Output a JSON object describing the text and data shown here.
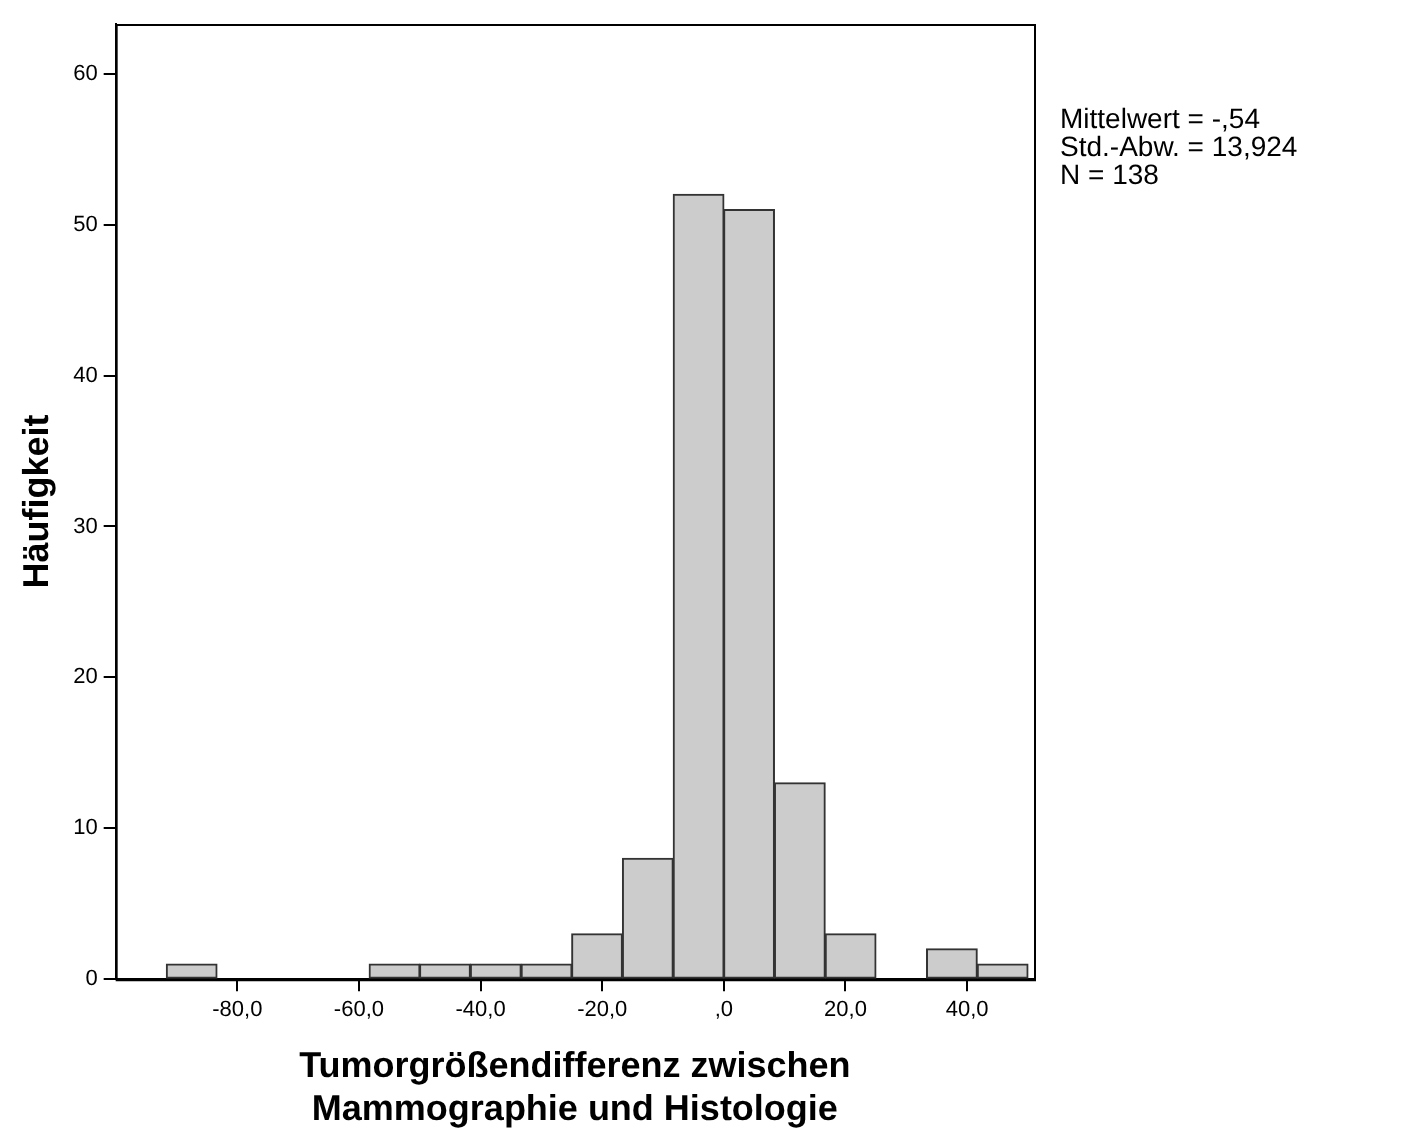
{
  "chart_data": {
    "type": "histogram",
    "xlabel": "Tumorgrößendifferenz zwischen\nMammographie und Histologie",
    "ylabel": "Häufigkeit",
    "bins": [
      -91.7,
      -83.3,
      -75,
      -66.7,
      -58.3,
      -50,
      -41.7,
      -33.3,
      -25,
      -16.7,
      -8.3,
      0,
      8.3,
      16.7,
      25,
      33.3,
      41.7,
      50
    ],
    "values": [
      1,
      0,
      0,
      0,
      1,
      1,
      1,
      1,
      3,
      8,
      52,
      51,
      13,
      3,
      0,
      2,
      1
    ],
    "color": "#cccccc",
    "xlim": [
      -100,
      51
    ],
    "xticks": [
      {
        "value": -80,
        "label": "-80,0"
      },
      {
        "value": -60,
        "label": "-60,0"
      },
      {
        "value": -40,
        "label": "-40,0"
      },
      {
        "value": -20,
        "label": "-20,0"
      },
      {
        "value": 0,
        "label": ",0"
      },
      {
        "value": 20,
        "label": "20,0"
      },
      {
        "value": 40,
        "label": "40,0"
      }
    ],
    "ylim": [
      0,
      63.3
    ],
    "yticks": [
      0,
      10,
      20,
      30,
      40,
      50,
      60
    ],
    "grid": false,
    "legend": false,
    "annotations": [
      "Mittelwert = -,54",
      "Std.-Abw. = 13,924",
      "N = 138"
    ]
  }
}
